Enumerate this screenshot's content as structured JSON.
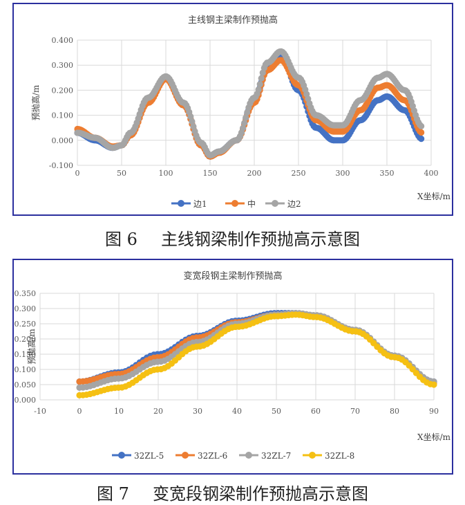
{
  "chart_data": [
    {
      "type": "scatter",
      "title": "主线钢主梁制作预抛高",
      "xlabel": "X坐标/m",
      "ylabel": "预抛高/m",
      "xlim": [
        0,
        400
      ],
      "ylim": [
        -0.1,
        0.4
      ],
      "xticks": [
        "0",
        "50",
        "100",
        "150",
        "200",
        "250",
        "300",
        "350",
        "400"
      ],
      "yticks": [
        "-0.100",
        "0.000",
        "0.100",
        "0.200",
        "0.300",
        "0.400"
      ],
      "grid": true,
      "legend": "bottom",
      "series": [
        {
          "name": "边1",
          "color": "#4472c4",
          "x": [
            0,
            20,
            40,
            50,
            60,
            80,
            100,
            120,
            140,
            150,
            160,
            180,
            200,
            215,
            230,
            250,
            270,
            290,
            300,
            320,
            340,
            350,
            370,
            390
          ],
          "y": [
            0.03,
            0.0,
            -0.03,
            -0.02,
            0.02,
            0.16,
            0.25,
            0.14,
            -0.02,
            -0.065,
            -0.045,
            0.0,
            0.16,
            0.29,
            0.34,
            0.2,
            0.05,
            0.0,
            0.0,
            0.08,
            0.16,
            0.175,
            0.12,
            0.005
          ]
        },
        {
          "name": "中",
          "color": "#ed7d31",
          "x": [
            0,
            20,
            40,
            50,
            60,
            80,
            100,
            120,
            140,
            150,
            160,
            180,
            200,
            215,
            230,
            250,
            270,
            290,
            300,
            320,
            340,
            350,
            370,
            390
          ],
          "y": [
            0.045,
            0.01,
            -0.025,
            -0.02,
            0.02,
            0.15,
            0.245,
            0.14,
            -0.02,
            -0.065,
            -0.05,
            0.0,
            0.15,
            0.28,
            0.32,
            0.22,
            0.08,
            0.035,
            0.035,
            0.12,
            0.21,
            0.22,
            0.16,
            0.03
          ]
        },
        {
          "name": "边2",
          "color": "#a5a5a5",
          "x": [
            0,
            20,
            40,
            50,
            60,
            80,
            100,
            120,
            140,
            150,
            160,
            180,
            200,
            215,
            230,
            250,
            270,
            290,
            300,
            320,
            340,
            350,
            370,
            390
          ],
          "y": [
            0.03,
            0.01,
            -0.03,
            -0.02,
            0.03,
            0.17,
            0.255,
            0.15,
            -0.01,
            -0.06,
            -0.045,
            0.0,
            0.17,
            0.31,
            0.355,
            0.25,
            0.1,
            0.06,
            0.06,
            0.16,
            0.25,
            0.265,
            0.2,
            0.055
          ]
        }
      ]
    },
    {
      "type": "scatter",
      "title": "变宽段钢主梁制作预抛高",
      "xlabel": "X坐标/m",
      "ylabel": "预抛高/m",
      "xlim": [
        -10,
        90
      ],
      "ylim": [
        0,
        0.35
      ],
      "xticks": [
        "-10",
        "0",
        "10",
        "20",
        "30",
        "40",
        "50",
        "60",
        "70",
        "80",
        "90"
      ],
      "yticks": [
        "0.000",
        "0.050",
        "0.100",
        "0.150",
        "0.200",
        "0.250",
        "0.300",
        "0.350"
      ],
      "grid": true,
      "legend": "bottom",
      "series": [
        {
          "name": "32ZL-5",
          "color": "#4472c4",
          "x": [
            0,
            10,
            20,
            30,
            40,
            50,
            55,
            60,
            70,
            80,
            90
          ],
          "y": [
            0.06,
            0.09,
            0.15,
            0.21,
            0.26,
            0.285,
            0.285,
            0.275,
            0.225,
            0.145,
            0.06
          ]
        },
        {
          "name": "32ZL-6",
          "color": "#ed7d31",
          "x": [
            0,
            10,
            20,
            30,
            40,
            50,
            55,
            60,
            70,
            80,
            90
          ],
          "y": [
            0.06,
            0.085,
            0.14,
            0.205,
            0.255,
            0.28,
            0.283,
            0.275,
            0.225,
            0.14,
            0.055
          ]
        },
        {
          "name": "32ZL-7",
          "color": "#a5a5a5",
          "x": [
            0,
            10,
            20,
            30,
            40,
            50,
            55,
            60,
            70,
            80,
            90
          ],
          "y": [
            0.04,
            0.07,
            0.125,
            0.19,
            0.25,
            0.28,
            0.285,
            0.278,
            0.23,
            0.145,
            0.06
          ]
        },
        {
          "name": "32ZL-8",
          "color": "#f5c013",
          "x": [
            0,
            10,
            20,
            30,
            40,
            50,
            55,
            60,
            70,
            80,
            90
          ],
          "y": [
            0.015,
            0.04,
            0.1,
            0.175,
            0.24,
            0.275,
            0.28,
            0.272,
            0.225,
            0.14,
            0.05
          ]
        }
      ]
    }
  ],
  "captions": [
    {
      "num": "图 6",
      "text": "主线钢梁制作预抛高示意图"
    },
    {
      "num": "图 7",
      "text": "变宽段钢梁制作预抛高示意图"
    }
  ]
}
